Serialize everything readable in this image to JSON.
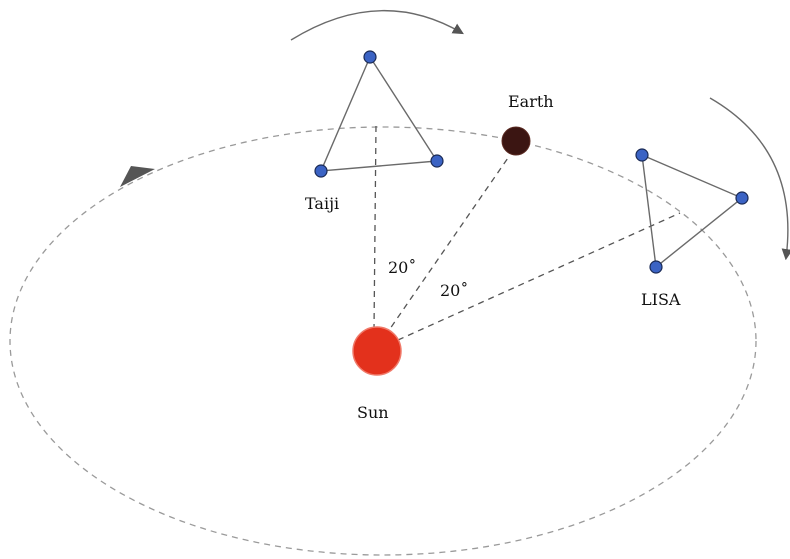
{
  "labels": {
    "taiji": "Taiji",
    "earth": "Earth",
    "lisa": "LISA",
    "sun": "Sun",
    "angle_taiji": "20˚",
    "angle_lisa": "20˚"
  },
  "colors": {
    "sun": "#e3311c",
    "earth": "#3b1512",
    "spacecraft": "#3b63c4",
    "arrowhead": "#555555"
  }
}
